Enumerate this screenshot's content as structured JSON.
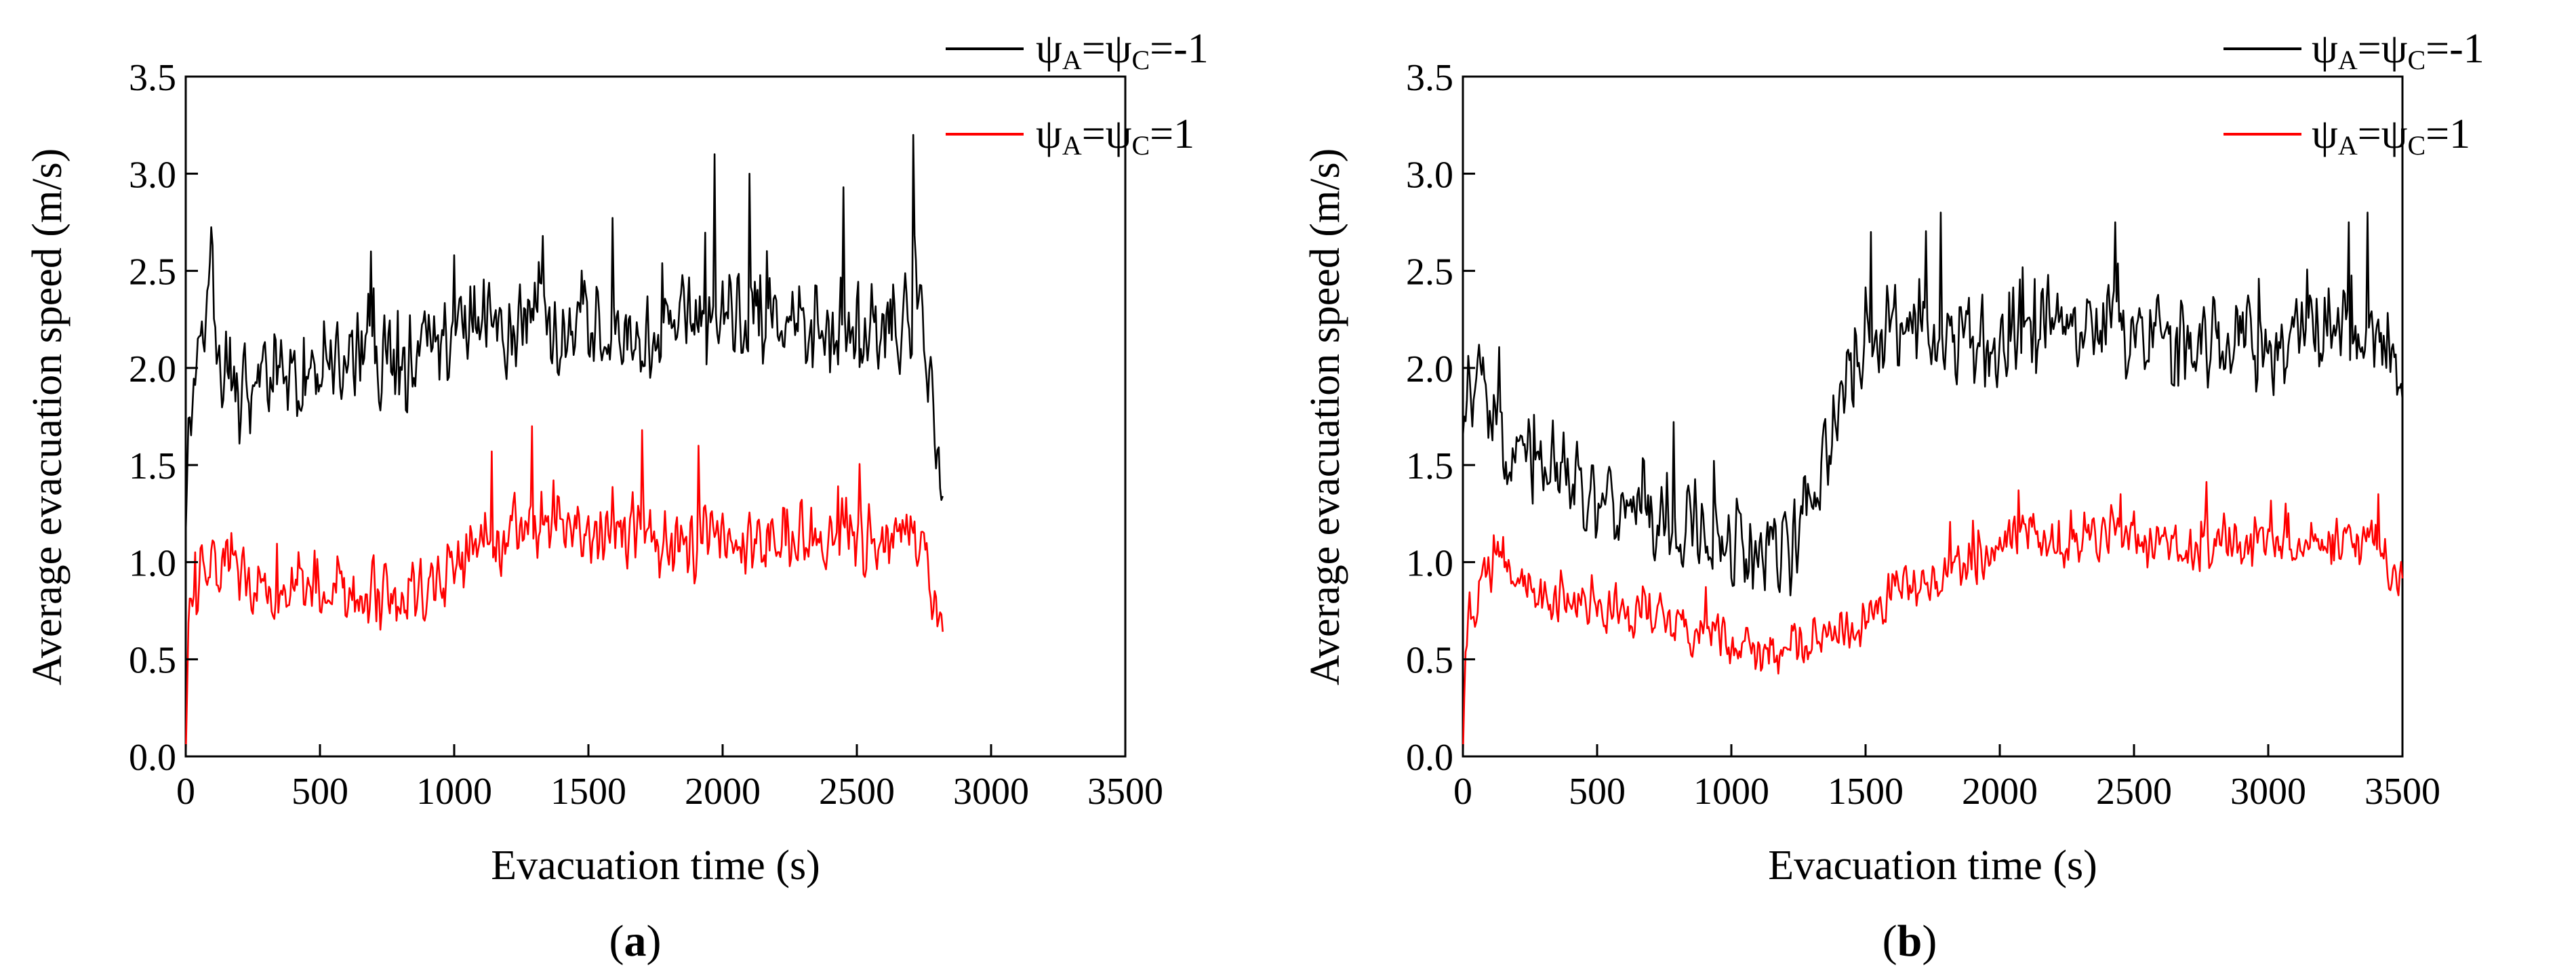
{
  "chart_data": [
    {
      "type": "line",
      "panel_label": "a",
      "caption_open": "(",
      "caption_close": ")",
      "xlabel": "Evacuation time (s)",
      "ylabel": "Average evacuation speed (m/s)",
      "xlim": [
        0,
        3500
      ],
      "ylim": [
        0,
        3.5
      ],
      "xticks": [
        "0",
        "500",
        "1000",
        "1500",
        "2000",
        "2500",
        "3000",
        "3500"
      ],
      "yticks": [
        "0.0",
        "0.5",
        "1.0",
        "1.5",
        "2.0",
        "2.5",
        "3.0",
        "3.5"
      ],
      "grid": false,
      "legend_position": "top-right",
      "series": [
        {
          "name": "ψA=ψC=-1",
          "label_parts": [
            "ψ",
            "A",
            "=ψ",
            "C",
            "=-1"
          ],
          "color": "#000000",
          "x": [
            0,
            10,
            30,
            60,
            90,
            130,
            200,
            300,
            400,
            500,
            600,
            700,
            800,
            900,
            1000,
            1100,
            1200,
            1300,
            1400,
            1500,
            1600,
            1700,
            1800,
            1900,
            2000,
            2100,
            2200,
            2300,
            2400,
            2500,
            2600,
            2700,
            2720,
            2760,
            2800,
            2820
          ],
          "values": [
            1.15,
            1.7,
            1.95,
            2.0,
            2.55,
            2.0,
            1.9,
            1.95,
            1.9,
            2.0,
            2.0,
            2.1,
            2.0,
            2.05,
            2.2,
            2.25,
            2.2,
            2.3,
            2.2,
            2.3,
            2.25,
            2.2,
            2.3,
            2.2,
            2.35,
            2.2,
            2.3,
            2.15,
            2.25,
            2.1,
            2.2,
            2.2,
            2.6,
            2.0,
            1.6,
            1.4
          ],
          "noise": 0.3,
          "peaks": [
            [
              100,
              2.63
            ],
            [
              690,
              2.6
            ],
            [
              1000,
              2.58
            ],
            [
              1330,
              2.68
            ],
            [
              1970,
              3.1
            ],
            [
              2100,
              3.0
            ],
            [
              2450,
              2.93
            ],
            [
              2710,
              3.2
            ]
          ]
        },
        {
          "name": "ψA=ψC=1",
          "label_parts": [
            "ψ",
            "A",
            "=ψ",
            "C",
            "=1"
          ],
          "color": "#ff0000",
          "x": [
            0,
            10,
            40,
            80,
            130,
            200,
            300,
            400,
            500,
            600,
            700,
            800,
            900,
            1000,
            1100,
            1200,
            1300,
            1400,
            1500,
            1600,
            1700,
            1800,
            1900,
            2000,
            2100,
            2200,
            2300,
            2400,
            2500,
            2600,
            2700,
            2760,
            2800,
            2820
          ],
          "values": [
            0.0,
            0.65,
            0.8,
            1.0,
            1.05,
            0.95,
            0.9,
            0.9,
            0.9,
            0.85,
            0.85,
            0.85,
            0.9,
            0.95,
            1.05,
            1.15,
            1.2,
            1.15,
            1.1,
            1.15,
            1.15,
            1.1,
            1.1,
            1.15,
            1.1,
            1.1,
            1.15,
            1.1,
            1.15,
            1.1,
            1.15,
            1.0,
            0.8,
            0.6
          ],
          "noise": 0.22,
          "peaks": [
            [
              1140,
              1.57
            ],
            [
              1290,
              1.7
            ],
            [
              1700,
              1.68
            ],
            [
              1910,
              1.6
            ]
          ]
        }
      ]
    },
    {
      "type": "line",
      "panel_label": "b",
      "caption_open": "(",
      "caption_close": ")",
      "xlabel": "Evacuation time (s)",
      "ylabel": "Average evacuation speed (m/s)",
      "xlim": [
        0,
        3500
      ],
      "ylim": [
        0,
        3.5
      ],
      "xticks": [
        "0",
        "500",
        "1000",
        "1500",
        "2000",
        "2500",
        "3000",
        "3500"
      ],
      "yticks": [
        "0.0",
        "0.5",
        "1.0",
        "1.5",
        "2.0",
        "2.5",
        "3.0",
        "3.5"
      ],
      "grid": false,
      "legend_position": "top-right",
      "series": [
        {
          "name": "ψA=ψC=-1",
          "label_parts": [
            "ψ",
            "A",
            "=ψ",
            "C",
            "=-1"
          ],
          "color": "#000000",
          "x": [
            0,
            10,
            50,
            150,
            300,
            450,
            600,
            800,
            1000,
            1100,
            1200,
            1300,
            1350,
            1400,
            1450,
            1500,
            1600,
            1800,
            2000,
            2200,
            2400,
            2600,
            2800,
            3000,
            3200,
            3400,
            3500
          ],
          "values": [
            1.65,
            1.85,
            1.95,
            1.6,
            1.5,
            1.4,
            1.3,
            1.2,
            1.1,
            1.0,
            1.1,
            1.2,
            1.5,
            1.8,
            2.0,
            2.15,
            2.2,
            2.2,
            2.15,
            2.2,
            2.15,
            2.2,
            2.15,
            2.1,
            2.2,
            2.15,
            2.0
          ],
          "noise": 0.3,
          "peaks": [
            [
              60,
              2.12
            ],
            [
              1520,
              2.7
            ],
            [
              1780,
              2.8
            ],
            [
              2430,
              2.75
            ],
            [
              3300,
              2.75
            ],
            [
              3370,
              2.8
            ]
          ]
        },
        {
          "name": "ψA=ψC=1",
          "label_parts": [
            "ψ",
            "A",
            "=ψ",
            "C",
            "=1"
          ],
          "color": "#ff0000",
          "x": [
            0,
            10,
            60,
            130,
            180,
            250,
            400,
            600,
            800,
            900,
            1000,
            1100,
            1200,
            1300,
            1400,
            1500,
            1600,
            1700,
            1800,
            1900,
            2000,
            2100,
            2200,
            2400,
            2600,
            2800,
            3000,
            3200,
            3400,
            3500
          ],
          "values": [
            0.0,
            0.6,
            0.8,
            1.05,
            0.95,
            0.85,
            0.8,
            0.75,
            0.7,
            0.6,
            0.6,
            0.52,
            0.55,
            0.6,
            0.65,
            0.72,
            0.85,
            0.9,
            0.95,
            1.0,
            1.1,
            1.15,
            1.1,
            1.15,
            1.1,
            1.1,
            1.1,
            1.1,
            1.1,
            0.9
          ],
          "noise": 0.16,
          "peaks": [
            [
              150,
              1.13
            ],
            [
              2070,
              1.37
            ],
            [
              2450,
              1.35
            ],
            [
              3410,
              1.35
            ]
          ]
        }
      ]
    }
  ]
}
